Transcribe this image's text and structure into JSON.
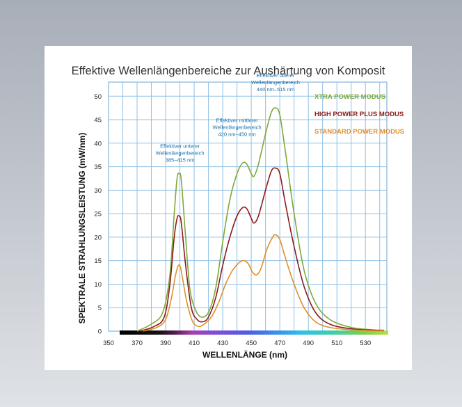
{
  "chart_data": {
    "type": "line",
    "title": "Effektive Wellenlängenbereiche zur Aushärtung von Komposit",
    "xlabel": "WELLENLÄNGE (nm)",
    "ylabel": "SPEKTRALE STRAHLUNGSLEISTUNG (mW/nm)",
    "xlim": [
      350,
      545
    ],
    "ylim": [
      0,
      53
    ],
    "x_ticks": [
      350,
      370,
      390,
      410,
      430,
      450,
      470,
      490,
      510,
      530
    ],
    "y_ticks": [
      0,
      5,
      10,
      15,
      20,
      25,
      30,
      35,
      40,
      45,
      50
    ],
    "grid": true,
    "legend_position": "top-right",
    "series": [
      {
        "name": "XTRA POWER MODUS",
        "color": "#7fa83a",
        "points": [
          [
            370,
            0
          ],
          [
            380,
            1.5
          ],
          [
            388,
            4
          ],
          [
            393,
            12
          ],
          [
            396,
            25
          ],
          [
            398,
            32.5
          ],
          [
            399.5,
            33.5
          ],
          [
            401,
            32
          ],
          [
            404,
            20
          ],
          [
            407,
            9
          ],
          [
            411,
            4.5
          ],
          [
            415,
            3
          ],
          [
            420,
            4
          ],
          [
            425,
            9
          ],
          [
            430,
            19
          ],
          [
            435,
            28
          ],
          [
            440,
            33.5
          ],
          [
            444,
            35.8
          ],
          [
            447,
            35.5
          ],
          [
            450,
            33.5
          ],
          [
            452,
            33
          ],
          [
            455,
            35.5
          ],
          [
            460,
            42
          ],
          [
            464,
            46.5
          ],
          [
            467,
            47.5
          ],
          [
            470,
            46
          ],
          [
            474,
            38
          ],
          [
            480,
            25
          ],
          [
            487,
            13
          ],
          [
            495,
            6
          ],
          [
            505,
            2.5
          ],
          [
            520,
            0.8
          ],
          [
            535,
            0.3
          ],
          [
            543,
            0.2
          ]
        ]
      },
      {
        "name": "HIGH POWER PLUS MODUS",
        "color": "#8b1a1a",
        "points": [
          [
            372,
            0
          ],
          [
            382,
            1
          ],
          [
            389,
            3
          ],
          [
            393,
            10
          ],
          [
            396,
            20
          ],
          [
            398,
            24
          ],
          [
            399.5,
            24.5
          ],
          [
            401,
            23
          ],
          [
            404,
            14
          ],
          [
            408,
            5
          ],
          [
            412,
            2.5
          ],
          [
            416,
            2
          ],
          [
            420,
            3
          ],
          [
            425,
            7
          ],
          [
            430,
            14
          ],
          [
            435,
            20
          ],
          [
            440,
            24.5
          ],
          [
            444,
            26.3
          ],
          [
            447,
            26
          ],
          [
            450,
            24
          ],
          [
            452,
            23
          ],
          [
            455,
            24.5
          ],
          [
            460,
            30
          ],
          [
            464,
            34
          ],
          [
            467,
            34.7
          ],
          [
            470,
            33.5
          ],
          [
            474,
            27
          ],
          [
            480,
            18
          ],
          [
            487,
            9.5
          ],
          [
            495,
            4
          ],
          [
            505,
            1.5
          ],
          [
            520,
            0.5
          ],
          [
            535,
            0.2
          ],
          [
            543,
            0.1
          ]
        ]
      },
      {
        "name": "STANDARD POWER MODUS",
        "color": "#e0902a",
        "points": [
          [
            374,
            0
          ],
          [
            384,
            0.8
          ],
          [
            390,
            2.5
          ],
          [
            394,
            7
          ],
          [
            397,
            12
          ],
          [
            399,
            14
          ],
          [
            400.5,
            13.5
          ],
          [
            402,
            11
          ],
          [
            405,
            6
          ],
          [
            409,
            2
          ],
          [
            413,
            1
          ],
          [
            417,
            1.5
          ],
          [
            422,
            3
          ],
          [
            427,
            6
          ],
          [
            432,
            10
          ],
          [
            437,
            13
          ],
          [
            442,
            14.7
          ],
          [
            445,
            15
          ],
          [
            448,
            14.3
          ],
          [
            451,
            12.5
          ],
          [
            454,
            12
          ],
          [
            457,
            13.5
          ],
          [
            461,
            17.5
          ],
          [
            465,
            20
          ],
          [
            467,
            20.5
          ],
          [
            470,
            19.5
          ],
          [
            474,
            15.5
          ],
          [
            480,
            10
          ],
          [
            487,
            5
          ],
          [
            495,
            2
          ],
          [
            505,
            0.8
          ],
          [
            520,
            0.3
          ],
          [
            535,
            0.1
          ],
          [
            543,
            0.05
          ]
        ]
      }
    ],
    "annotations": [
      {
        "lines": [
          "Effektiver unterer",
          "Wellenlängenbereich",
          "385–415 nm"
        ],
        "x": 400,
        "y": 39
      },
      {
        "lines": [
          "Effektiver mittlerer",
          "Wellenlängenbereich",
          "420 nm–450 nm"
        ],
        "x": 440,
        "y": 44.5
      },
      {
        "lines": [
          "Effektiver oberer",
          "Wellenlängenbereich",
          "440 nm–515 nm"
        ],
        "x": 467,
        "y": 54
      }
    ],
    "spectrum_bar": true
  }
}
